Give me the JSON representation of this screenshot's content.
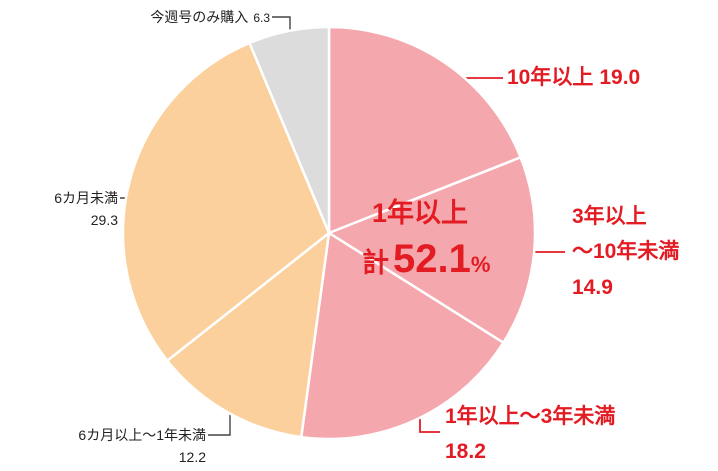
{
  "chart_data": {
    "type": "pie",
    "categories": [
      "10年以上",
      "3年以上\n〜10年未満",
      "1年以上〜3年未満",
      "6カ月以上〜1年未満",
      "6カ月未満",
      "今週号のみ購入"
    ],
    "values": [
      19.0,
      14.9,
      18.2,
      12.2,
      29.3,
      6.3
    ],
    "value_labels": [
      "19.0",
      "14.9",
      "18.2",
      "12.2",
      "29.3",
      "6.3"
    ],
    "colors": [
      "#f4a7ac",
      "#f4a7ac",
      "#f4a7ac",
      "#fbd09c",
      "#fbd09c",
      "#dcdcdc"
    ],
    "center_label": [
      "1年以上",
      "計",
      "52.1",
      "%"
    ]
  }
}
